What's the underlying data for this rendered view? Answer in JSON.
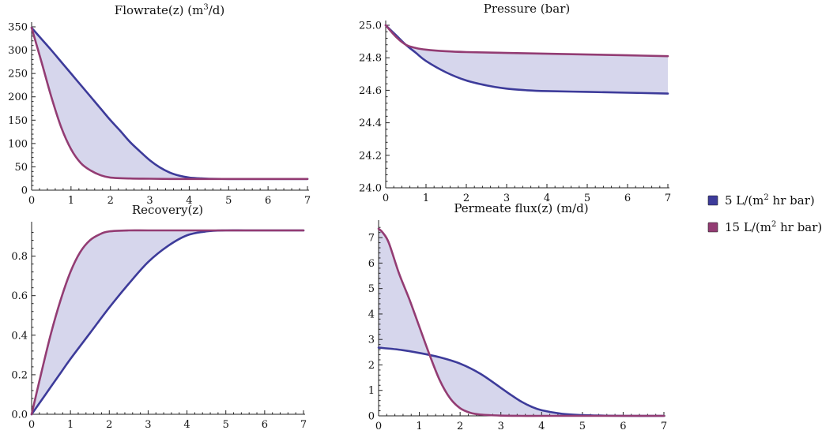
{
  "colors": {
    "series_low": "#3d3b9a",
    "series_high": "#933c73",
    "fill": "#d6d6ec"
  },
  "legend": {
    "items": [
      {
        "prefix": "5 L/(m",
        "sup": "2",
        "suffix": " hr bar)",
        "color": "#3d3b9a"
      },
      {
        "prefix": "15 L/(m",
        "sup": "2",
        "suffix": " hr bar)",
        "color": "#933c73"
      }
    ]
  },
  "chart_data": [
    {
      "type": "line",
      "title": "Flowrate(z) (m³/d)",
      "title_parts": {
        "pre": "Flowrate(z) (m",
        "sup": "3",
        "post": "/d)"
      },
      "xlim": [
        0,
        7
      ],
      "ylim": [
        0,
        350
      ],
      "xticks": [
        0,
        1,
        2,
        3,
        4,
        5,
        6,
        7
      ],
      "yticks": [
        0,
        50,
        100,
        150,
        200,
        250,
        300,
        350
      ],
      "yticklabels": [
        "0",
        "50",
        "100",
        "150",
        "200",
        "250",
        "300",
        "350"
      ],
      "fill_between": true,
      "series": [
        {
          "legend_index": 0,
          "x": [
            0,
            0.25,
            0.5,
            0.75,
            1,
            1.25,
            1.5,
            1.75,
            2,
            2.25,
            2.5,
            2.75,
            3,
            3.25,
            3.5,
            3.75,
            4,
            4.25,
            4.5,
            5,
            5.5,
            6,
            6.5,
            7
          ],
          "y": [
            348,
            324,
            300,
            275,
            250,
            225,
            200,
            175,
            150,
            127,
            103,
            83,
            64,
            49,
            38,
            31,
            27,
            25.5,
            24.5,
            24,
            24,
            24,
            24,
            24
          ]
        },
        {
          "legend_index": 1,
          "x": [
            0,
            0.25,
            0.5,
            0.75,
            1,
            1.25,
            1.5,
            1.75,
            2,
            2.5,
            3,
            3.5,
            4,
            5,
            6,
            7
          ],
          "y": [
            348,
            275,
            200,
            135,
            88,
            58,
            42,
            32,
            27,
            25,
            24.5,
            24,
            24,
            24,
            24,
            24
          ]
        }
      ]
    },
    {
      "type": "line",
      "title": "Pressure (bar)",
      "xlim": [
        0,
        7
      ],
      "ylim": [
        24.0,
        25.0
      ],
      "xticks": [
        0,
        1,
        2,
        3,
        4,
        5,
        6,
        7
      ],
      "yticks": [
        24.0,
        24.2,
        24.4,
        24.6,
        24.8,
        25.0
      ],
      "yticklabels": [
        "24.0",
        "24.2",
        "24.4",
        "24.6",
        "24.8",
        "25.0"
      ],
      "fill_between": true,
      "series": [
        {
          "legend_index": 0,
          "x": [
            0,
            0.25,
            0.5,
            0.75,
            1,
            1.5,
            2,
            2.5,
            3,
            3.5,
            4,
            5,
            6,
            7
          ],
          "y": [
            25.0,
            24.94,
            24.88,
            24.83,
            24.78,
            24.71,
            24.66,
            24.63,
            24.61,
            24.6,
            24.595,
            24.59,
            24.585,
            24.58
          ]
        },
        {
          "legend_index": 1,
          "x": [
            0,
            0.25,
            0.5,
            0.75,
            1,
            1.5,
            2,
            3,
            4,
            5,
            6,
            7
          ],
          "y": [
            25.0,
            24.93,
            24.88,
            24.86,
            24.85,
            24.84,
            24.835,
            24.83,
            24.825,
            24.82,
            24.815,
            24.81
          ]
        }
      ]
    },
    {
      "type": "line",
      "title": "Recovery(z)",
      "xlim": [
        0,
        7
      ],
      "ylim": [
        0,
        0.95
      ],
      "xticks": [
        0,
        1,
        2,
        3,
        4,
        5,
        6,
        7
      ],
      "yticks": [
        0.0,
        0.2,
        0.4,
        0.6,
        0.8
      ],
      "yticklabels": [
        "0.0",
        "0.2",
        "0.4",
        "0.6",
        "0.8"
      ],
      "fill_between": true,
      "series": [
        {
          "legend_index": 0,
          "x": [
            0,
            0.25,
            0.5,
            0.75,
            1,
            1.5,
            2,
            2.5,
            3,
            3.5,
            4,
            4.5,
            5,
            5.5,
            6,
            7
          ],
          "y": [
            0.0,
            0.07,
            0.14,
            0.21,
            0.28,
            0.41,
            0.54,
            0.66,
            0.77,
            0.85,
            0.905,
            0.925,
            0.93,
            0.93,
            0.93,
            0.93
          ]
        },
        {
          "legend_index": 1,
          "x": [
            0,
            0.25,
            0.5,
            0.75,
            1,
            1.25,
            1.5,
            1.75,
            2,
            2.5,
            3,
            4,
            5,
            6,
            7
          ],
          "y": [
            0.0,
            0.21,
            0.41,
            0.58,
            0.72,
            0.82,
            0.88,
            0.91,
            0.925,
            0.93,
            0.93,
            0.93,
            0.93,
            0.93,
            0.93
          ]
        }
      ]
    },
    {
      "type": "line",
      "title": "Permeate flux(z) (m/d)",
      "xlim": [
        0,
        7
      ],
      "ylim": [
        0,
        7.5
      ],
      "xticks": [
        0,
        1,
        2,
        3,
        4,
        5,
        6,
        7
      ],
      "yticks": [
        0,
        1,
        2,
        3,
        4,
        5,
        6,
        7
      ],
      "yticklabels": [
        "0",
        "1",
        "2",
        "3",
        "4",
        "5",
        "6",
        "7"
      ],
      "fill_between": true,
      "series": [
        {
          "legend_index": 0,
          "x": [
            0,
            0.5,
            1,
            1.5,
            2,
            2.5,
            3,
            3.25,
            3.5,
            3.75,
            4,
            4.5,
            5,
            5.5,
            6,
            7
          ],
          "y": [
            2.68,
            2.6,
            2.47,
            2.3,
            2.05,
            1.65,
            1.1,
            0.82,
            0.56,
            0.36,
            0.22,
            0.08,
            0.03,
            0.01,
            0.0,
            0.0
          ]
        },
        {
          "legend_index": 1,
          "x": [
            0,
            0.1,
            0.25,
            0.5,
            0.75,
            1,
            1.25,
            1.5,
            1.75,
            2,
            2.25,
            2.5,
            3,
            3.5,
            4,
            5,
            6,
            7
          ],
          "y": [
            7.35,
            7.2,
            6.8,
            5.6,
            4.6,
            3.5,
            2.4,
            1.4,
            0.7,
            0.3,
            0.12,
            0.05,
            0.01,
            0.0,
            0.0,
            0.0,
            0.0,
            0.0
          ]
        }
      ]
    }
  ]
}
